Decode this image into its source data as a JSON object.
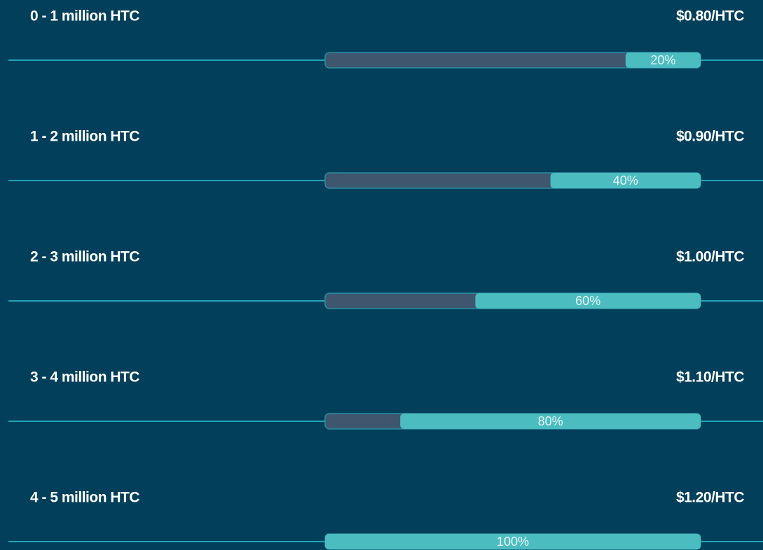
{
  "tiers": [
    {
      "range": "0 - 1 million HTC",
      "price": "$0.80/HTC",
      "progress": 20,
      "progress_label": "20%"
    },
    {
      "range": "1 - 2 million HTC",
      "price": "$0.90/HTC",
      "progress": 40,
      "progress_label": "40%"
    },
    {
      "range": "2 - 3 million HTC",
      "price": "$1.00/HTC",
      "progress": 60,
      "progress_label": "60%"
    },
    {
      "range": "3 - 4 million HTC",
      "price": "$1.10/HTC",
      "progress": 80,
      "progress_label": "80%"
    },
    {
      "range": "4 - 5 million HTC",
      "price": "$1.20/HTC",
      "progress": 100,
      "progress_label": "100%"
    }
  ]
}
